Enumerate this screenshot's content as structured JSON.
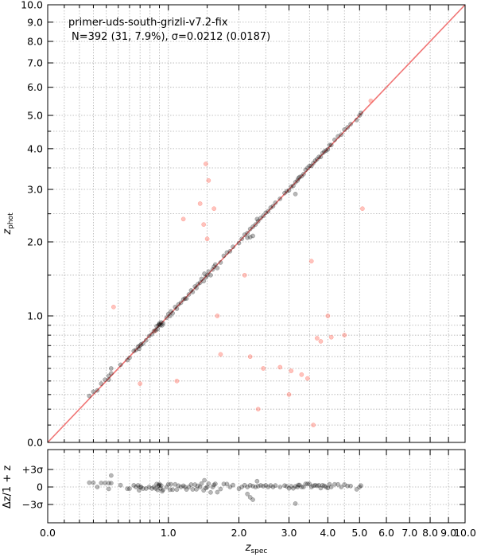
{
  "colors": {
    "good": "#000000",
    "outlier": "#ff6a5a",
    "one_to_one": "#f07474",
    "grid": "#b0b0b0"
  },
  "annotation": {
    "title": "primer-uds-south-grizli-v7.2-fix",
    "stats": "N=392 (31,  7.9%), σ=0.0212 (0.0187)"
  },
  "chart_data": [
    {
      "type": "scatter",
      "xlabel": "z_spec",
      "ylabel": "z_phot",
      "scale": "log(1+z)",
      "xlim": [
        0,
        10
      ],
      "ylim": [
        0,
        10
      ],
      "grid": true,
      "x_ticks": [
        "0.0",
        "1.0",
        "2.0",
        "3.0",
        "4.0",
        "5.0",
        "6.0",
        "7.0",
        "8.0",
        "9.0",
        "10.0"
      ],
      "y_ticks": [
        "0.0",
        "1.0",
        "2.0",
        "3.0",
        "4.0",
        "5.0",
        "6.0",
        "7.0",
        "8.0",
        "9.0",
        "10.0"
      ],
      "one_to_one_line": true,
      "series": [
        {
          "role": "good",
          "points": [
            [
              0.27,
              0.29
            ],
            [
              0.3,
              0.32
            ],
            [
              0.33,
              0.33
            ],
            [
              0.36,
              0.38
            ],
            [
              0.39,
              0.41
            ],
            [
              0.42,
              0.44
            ],
            [
              0.42,
              0.41
            ],
            [
              0.44,
              0.46
            ],
            [
              0.44,
              0.5
            ],
            [
              0.52,
              0.53
            ],
            [
              0.58,
              0.57
            ],
            [
              0.6,
              0.59
            ],
            [
              0.64,
              0.65
            ],
            [
              0.66,
              0.66
            ],
            [
              0.68,
              0.69
            ],
            [
              0.69,
              0.67
            ],
            [
              0.7,
              0.7
            ],
            [
              0.71,
              0.71
            ],
            [
              0.73,
              0.72
            ],
            [
              0.76,
              0.75
            ],
            [
              0.79,
              0.79
            ],
            [
              0.82,
              0.81
            ],
            [
              0.84,
              0.84
            ],
            [
              0.86,
              0.85
            ],
            [
              0.87,
              0.89
            ],
            [
              0.88,
              0.86
            ],
            [
              0.89,
              0.9
            ],
            [
              0.9,
              0.92
            ],
            [
              0.9,
              0.91
            ],
            [
              0.91,
              0.9
            ],
            [
              0.92,
              0.93
            ],
            [
              0.93,
              0.9
            ],
            [
              0.94,
              0.92
            ],
            [
              0.98,
              0.98
            ],
            [
              1.0,
              1.02
            ],
            [
              1.02,
              1.0
            ],
            [
              1.03,
              1.05
            ],
            [
              1.05,
              1.03
            ],
            [
              1.08,
              1.1
            ],
            [
              1.1,
              1.08
            ],
            [
              1.12,
              1.13
            ],
            [
              1.15,
              1.15
            ],
            [
              1.18,
              1.19
            ],
            [
              1.2,
              1.2
            ],
            [
              1.22,
              1.2
            ],
            [
              1.25,
              1.25
            ],
            [
              1.28,
              1.3
            ],
            [
              1.3,
              1.28
            ],
            [
              1.33,
              1.35
            ],
            [
              1.35,
              1.33
            ],
            [
              1.37,
              1.38
            ],
            [
              1.4,
              1.4
            ],
            [
              1.42,
              1.45
            ],
            [
              1.45,
              1.42
            ],
            [
              1.46,
              1.52
            ],
            [
              1.48,
              1.47
            ],
            [
              1.5,
              1.5
            ],
            [
              1.52,
              1.55
            ],
            [
              1.55,
              1.5
            ],
            [
              1.58,
              1.58
            ],
            [
              1.6,
              1.62
            ],
            [
              1.62,
              1.65
            ],
            [
              1.65,
              1.6
            ],
            [
              1.7,
              1.68
            ],
            [
              1.75,
              1.78
            ],
            [
              1.8,
              1.83
            ],
            [
              1.85,
              1.85
            ],
            [
              1.9,
              1.92
            ],
            [
              2.0,
              1.98
            ],
            [
              2.05,
              2.05
            ],
            [
              2.1,
              2.12
            ],
            [
              2.15,
              2.15
            ],
            [
              2.15,
              2.07
            ],
            [
              2.2,
              2.08
            ],
            [
              2.2,
              2.22
            ],
            [
              2.25,
              2.1
            ],
            [
              2.25,
              2.26
            ],
            [
              2.3,
              2.3
            ],
            [
              2.33,
              2.4
            ],
            [
              2.35,
              2.36
            ],
            [
              2.4,
              2.42
            ],
            [
              2.45,
              2.46
            ],
            [
              2.5,
              2.52
            ],
            [
              2.55,
              2.55
            ],
            [
              2.6,
              2.62
            ],
            [
              2.65,
              2.65
            ],
            [
              2.7,
              2.72
            ],
            [
              2.8,
              2.8
            ],
            [
              2.9,
              2.92
            ],
            [
              2.95,
              2.96
            ],
            [
              3.0,
              2.98
            ],
            [
              3.05,
              3.06
            ],
            [
              3.1,
              3.08
            ],
            [
              3.15,
              3.16
            ],
            [
              3.15,
              2.9
            ],
            [
              3.2,
              3.2
            ],
            [
              3.22,
              3.25
            ],
            [
              3.25,
              3.28
            ],
            [
              3.3,
              3.3
            ],
            [
              3.35,
              3.35
            ],
            [
              3.4,
              3.45
            ],
            [
              3.45,
              3.5
            ],
            [
              3.5,
              3.55
            ],
            [
              3.55,
              3.55
            ],
            [
              3.6,
              3.62
            ],
            [
              3.65,
              3.68
            ],
            [
              3.7,
              3.72
            ],
            [
              3.75,
              3.78
            ],
            [
              3.8,
              3.78
            ],
            [
              3.85,
              3.88
            ],
            [
              3.9,
              3.92
            ],
            [
              3.95,
              3.95
            ],
            [
              4.0,
              3.98
            ],
            [
              4.05,
              4.1
            ],
            [
              4.1,
              4.1
            ],
            [
              4.2,
              4.25
            ],
            [
              4.3,
              4.35
            ],
            [
              4.4,
              4.4
            ],
            [
              4.5,
              4.55
            ],
            [
              4.6,
              4.62
            ],
            [
              4.7,
              4.72
            ],
            [
              4.9,
              4.85
            ],
            [
              5.0,
              5.0
            ],
            [
              5.05,
              5.08
            ]
          ]
        },
        {
          "role": "outlier",
          "points": [
            [
              0.46,
              1.1
            ],
            [
              0.7,
              0.38
            ],
            [
              1.1,
              0.4
            ],
            [
              1.18,
              2.4
            ],
            [
              1.4,
              2.7
            ],
            [
              1.48,
              3.6
            ],
            [
              1.5,
              2.05
            ],
            [
              1.52,
              3.2
            ],
            [
              1.6,
              2.6
            ],
            [
              1.65,
              1.0
            ],
            [
              1.7,
              0.62
            ],
            [
              0.85,
              0.84
            ],
            [
              1.45,
              2.3
            ],
            [
              2.1,
              1.5
            ],
            [
              2.2,
              0.6
            ],
            [
              2.35,
              0.2
            ],
            [
              2.45,
              0.5
            ],
            [
              2.8,
              0.51
            ],
            [
              3.0,
              0.3
            ],
            [
              3.05,
              0.48
            ],
            [
              3.3,
              0.45
            ],
            [
              3.45,
              0.42
            ],
            [
              3.55,
              1.7
            ],
            [
              3.6,
              0.1
            ],
            [
              3.7,
              0.77
            ],
            [
              3.8,
              0.74
            ],
            [
              4.0,
              1.0
            ],
            [
              4.1,
              0.78
            ],
            [
              4.5,
              0.8
            ],
            [
              5.1,
              2.6
            ],
            [
              5.4,
              5.5
            ]
          ]
        }
      ]
    },
    {
      "type": "scatter",
      "xlabel": "z_spec",
      "ylabel": "Δz/1 + z",
      "xlim": [
        0,
        10
      ],
      "y_ticks": [
        "+3σ",
        "0",
        "−3σ"
      ],
      "grid": true
    }
  ]
}
